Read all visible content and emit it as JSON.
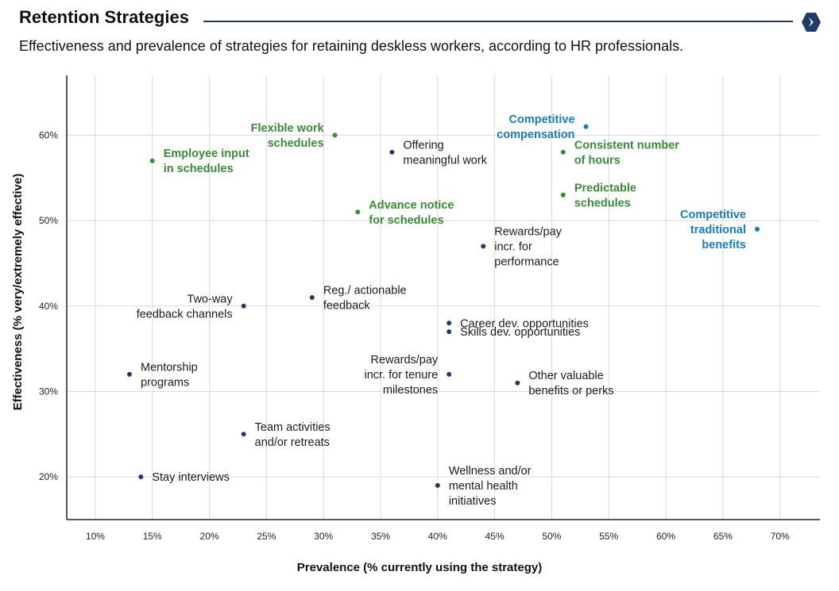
{
  "header": {
    "title": "Retention Strategies",
    "subtitle": "Effectiveness and prevalence of strategies for retaining deskless workers, according to HR professionals."
  },
  "colors": {
    "default": "#1f3b66",
    "green": "#3a8a3a",
    "blue": "#1a7bbf",
    "grid": "#d9d9d9",
    "axis": "#222222"
  },
  "chart_data": {
    "type": "scatter",
    "title": "",
    "xlabel": "Prevalence (% currently using the strategy)",
    "ylabel": "Effectiveness (% very/extremely effective)",
    "xlim": [
      7.5,
      73.5
    ],
    "ylim": [
      15,
      67
    ],
    "x_ticks": [
      10,
      15,
      20,
      25,
      30,
      35,
      40,
      45,
      50,
      55,
      60,
      65,
      70
    ],
    "x_tick_labels": [
      "10%",
      "15%",
      "20%",
      "25%",
      "30%",
      "35%",
      "40%",
      "45%",
      "50%",
      "55%",
      "60%",
      "65%",
      "70%"
    ],
    "y_ticks": [
      20,
      30,
      40,
      50,
      60
    ],
    "y_tick_labels": [
      "20%",
      "30%",
      "40%",
      "50%",
      "60%"
    ],
    "grid": true,
    "points": [
      {
        "id": "flexible-work-schedules",
        "label": [
          "Flexible work",
          "schedules"
        ],
        "x": 31,
        "y": 60,
        "color": "green",
        "side": "left"
      },
      {
        "id": "employee-input-in-schedules",
        "label": [
          "Employee input",
          "in schedules"
        ],
        "x": 15,
        "y": 57,
        "color": "green",
        "side": "right"
      },
      {
        "id": "offering-meaningful-work",
        "label": [
          "Offering",
          "meaningful work"
        ],
        "x": 36,
        "y": 58,
        "color": "default",
        "side": "right"
      },
      {
        "id": "competitive-compensation",
        "label": [
          "Competitive",
          "compensation"
        ],
        "x": 53,
        "y": 61,
        "color": "blue",
        "side": "left"
      },
      {
        "id": "consistent-number-of-hours",
        "label": [
          "Consistent number",
          "of hours"
        ],
        "x": 51,
        "y": 58,
        "color": "green",
        "side": "right"
      },
      {
        "id": "predictable-schedules",
        "label": [
          "Predictable",
          "schedules"
        ],
        "x": 51,
        "y": 53,
        "color": "green",
        "side": "right"
      },
      {
        "id": "advance-notice-for-schedules",
        "label": [
          "Advance notice",
          "for schedules"
        ],
        "x": 33,
        "y": 51,
        "color": "green",
        "side": "right"
      },
      {
        "id": "competitive-traditional-benefits",
        "label": [
          "Competitive",
          "traditional",
          "benefits"
        ],
        "x": 68,
        "y": 49,
        "color": "blue",
        "side": "left"
      },
      {
        "id": "rewards-pay-incr-for-performance",
        "label": [
          "Rewards/pay",
          "incr. for",
          "performance"
        ],
        "x": 44,
        "y": 47,
        "color": "default",
        "side": "right"
      },
      {
        "id": "two-way-feedback-channels",
        "label": [
          "Two-way",
          "feedback channels"
        ],
        "x": 23,
        "y": 40,
        "color": "default",
        "side": "left"
      },
      {
        "id": "reg-actionable-feedback",
        "label": [
          "Reg./ actionable",
          "feedback"
        ],
        "x": 29,
        "y": 41,
        "color": "default",
        "side": "right"
      },
      {
        "id": "career-dev-opportunities",
        "label": [
          "Career dev. opportunities"
        ],
        "x": 41,
        "y": 38,
        "color": "default",
        "side": "right"
      },
      {
        "id": "skills-dev-opportunities",
        "label": [
          "Skills dev. opportunities"
        ],
        "x": 41,
        "y": 37,
        "color": "default",
        "side": "right"
      },
      {
        "id": "mentorship-programs",
        "label": [
          "Mentorship",
          "programs"
        ],
        "x": 13,
        "y": 32,
        "color": "default",
        "side": "right"
      },
      {
        "id": "rewards-pay-incr-for-tenure-milestones",
        "label": [
          "Rewards/pay",
          "incr. for tenure",
          "milestones"
        ],
        "x": 41,
        "y": 32,
        "color": "default",
        "side": "left"
      },
      {
        "id": "other-valuable-benefits-or-perks",
        "label": [
          "Other valuable",
          "benefits or perks"
        ],
        "x": 47,
        "y": 31,
        "color": "default",
        "side": "right"
      },
      {
        "id": "team-activities-and-or-retreats",
        "label": [
          "Team activities",
          "and/or retreats"
        ],
        "x": 23,
        "y": 25,
        "color": "default",
        "side": "right"
      },
      {
        "id": "stay-interviews",
        "label": [
          "Stay interviews"
        ],
        "x": 14,
        "y": 20,
        "color": "default",
        "side": "right"
      },
      {
        "id": "wellness-and-or-mental-health-initiatives",
        "label": [
          "Wellness and/or",
          "mental health",
          "initiatives"
        ],
        "x": 40,
        "y": 19,
        "color": "default",
        "side": "right"
      }
    ]
  }
}
